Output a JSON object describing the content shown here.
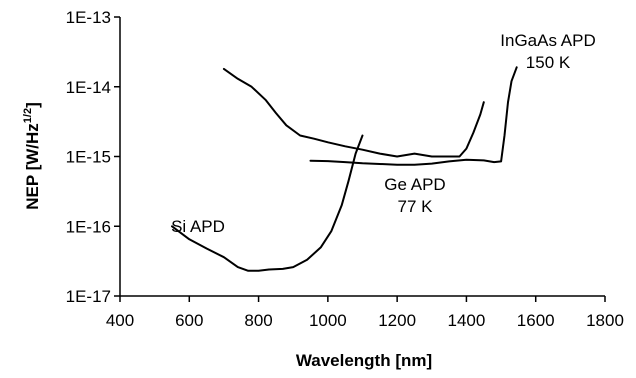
{
  "chart_data": {
    "type": "line",
    "title": "",
    "xlabel": "Wavelength [nm]",
    "ylabel_parts": {
      "main": "NEP [W/Hz",
      "sup": "1/2",
      "end": "]"
    },
    "x_scale": "linear",
    "y_scale": "log",
    "xlim": [
      400,
      1800
    ],
    "ylim": [
      1e-17,
      1e-13
    ],
    "x_ticks": [
      400,
      600,
      800,
      1000,
      1200,
      1400,
      1600,
      1800
    ],
    "y_ticks": [
      {
        "value": 1e-13,
        "label": "1E-13"
      },
      {
        "value": 1e-14,
        "label": "1E-14"
      },
      {
        "value": 1e-15,
        "label": "1E-15"
      },
      {
        "value": 1e-16,
        "label": "1E-16"
      },
      {
        "value": 1e-17,
        "label": "1E-17"
      }
    ],
    "grid": false,
    "line_color": "#000000",
    "series": [
      {
        "name": "Si APD",
        "x": [
          550,
          600,
          650,
          700,
          740,
          770,
          800,
          830,
          870,
          900,
          940,
          980,
          1010,
          1040,
          1060,
          1080,
          1100
        ],
        "y": [
          1e-16,
          6.5e-17,
          4.8e-17,
          3.6e-17,
          2.6e-17,
          2.3e-17,
          2.3e-17,
          2.4e-17,
          2.45e-17,
          2.6e-17,
          3.3e-17,
          5e-17,
          8.5e-17,
          2e-16,
          4.5e-16,
          1.1e-15,
          2e-15
        ]
      },
      {
        "name": "Ge APD",
        "x": [
          700,
          740,
          780,
          820,
          850,
          880,
          920,
          960,
          1000,
          1050,
          1100,
          1150,
          1200,
          1250,
          1300,
          1340,
          1380,
          1400,
          1420,
          1440,
          1450
        ],
        "y": [
          1.8e-14,
          1.3e-14,
          1e-14,
          6.5e-15,
          4.2e-15,
          2.8e-15,
          2e-15,
          1.8e-15,
          1.6e-15,
          1.4e-15,
          1.25e-15,
          1.1e-15,
          1e-15,
          1.1e-15,
          1e-15,
          1e-15,
          1e-15,
          1.3e-15,
          2.2e-15,
          4e-15,
          6e-15
        ]
      },
      {
        "name": "InGaAs APD",
        "x": [
          950,
          1000,
          1050,
          1100,
          1150,
          1200,
          1250,
          1300,
          1350,
          1400,
          1450,
          1480,
          1500,
          1510,
          1520,
          1530,
          1545
        ],
        "y": [
          8.7e-16,
          8.6e-16,
          8.3e-16,
          8e-16,
          7.8e-16,
          7.6e-16,
          7.6e-16,
          7.9e-16,
          8.5e-16,
          9e-16,
          8.8e-16,
          8.3e-16,
          8.5e-16,
          2e-15,
          6e-15,
          1.2e-14,
          1.9e-14
        ]
      }
    ],
    "annotations": [
      {
        "name": "si-label",
        "lines": [
          "Si APD"
        ]
      },
      {
        "name": "ge-label",
        "lines": [
          "Ge APD",
          "77 K"
        ]
      },
      {
        "name": "ingaas-label",
        "lines": [
          "InGaAs APD",
          "150 K"
        ]
      }
    ]
  }
}
